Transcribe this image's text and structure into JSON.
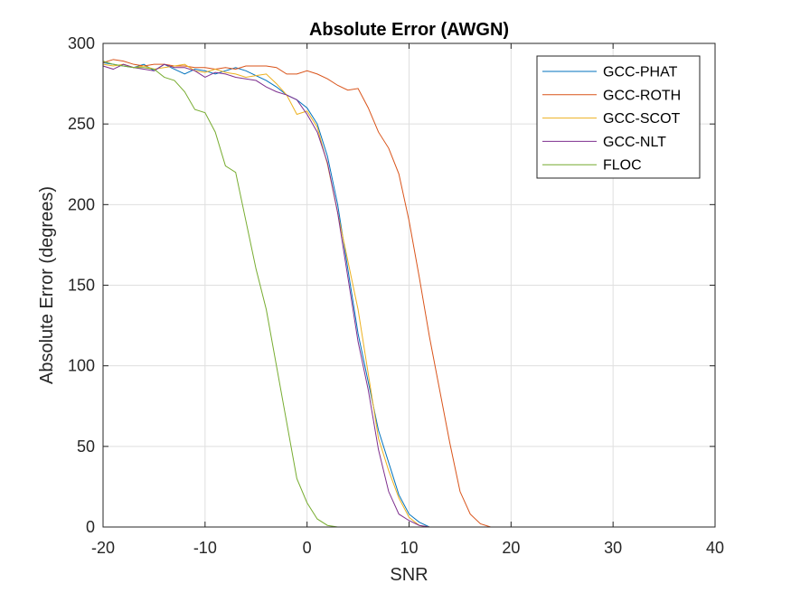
{
  "chart_data": {
    "type": "line",
    "title": "Absolute Error (AWGN)",
    "xlabel": "SNR",
    "ylabel": "Absolute Error (degrees)",
    "xlim": [
      -20,
      40
    ],
    "ylim": [
      0,
      300
    ],
    "xticks": [
      -20,
      -10,
      0,
      10,
      20,
      30,
      40
    ],
    "yticks": [
      0,
      50,
      100,
      150,
      200,
      250,
      300
    ],
    "grid": true,
    "legend_position": "top-right",
    "series": [
      {
        "name": "GCC-PHAT",
        "color": "#0072BD",
        "x": [
          -20,
          -19,
          -18,
          -17,
          -16,
          -15,
          -14,
          -13,
          -12,
          -11,
          -10,
          -9,
          -8,
          -7,
          -6,
          -5,
          -4,
          -3,
          -2,
          -1,
          0,
          1,
          2,
          3,
          4,
          5,
          6,
          7,
          8,
          9,
          10,
          11,
          12,
          13,
          14,
          15,
          16,
          17,
          18,
          19,
          20,
          25,
          30,
          35,
          40
        ],
        "y": [
          288,
          287,
          286,
          285,
          287,
          283,
          287,
          284,
          281,
          284,
          283,
          281,
          283,
          285,
          283,
          280,
          277,
          273,
          268,
          265,
          260,
          250,
          230,
          200,
          160,
          120,
          90,
          60,
          40,
          20,
          8,
          3,
          0,
          0,
          0,
          0,
          0,
          0,
          0,
          0,
          0,
          0,
          0,
          0,
          0
        ]
      },
      {
        "name": "GCC-ROTH",
        "color": "#D95319",
        "x": [
          -20,
          -19,
          -18,
          -17,
          -16,
          -15,
          -14,
          -13,
          -12,
          -11,
          -10,
          -9,
          -8,
          -7,
          -6,
          -5,
          -4,
          -3,
          -2,
          -1,
          0,
          1,
          2,
          3,
          4,
          5,
          6,
          7,
          8,
          9,
          10,
          11,
          12,
          13,
          14,
          15,
          16,
          17,
          18,
          19,
          20,
          25,
          30,
          35,
          40
        ],
        "y": [
          288,
          290,
          289,
          287,
          286,
          287,
          287,
          286,
          286,
          285,
          285,
          284,
          285,
          284,
          286,
          286,
          286,
          285,
          281,
          281,
          283,
          281,
          278,
          274,
          271,
          272,
          260,
          245,
          235,
          219,
          190,
          155,
          118,
          85,
          52,
          22,
          8,
          2,
          0,
          0,
          0,
          0,
          0,
          0,
          0
        ]
      },
      {
        "name": "GCC-SCOT",
        "color": "#EDB120",
        "x": [
          -20,
          -19,
          -18,
          -17,
          -16,
          -15,
          -14,
          -13,
          -12,
          -11,
          -10,
          -9,
          -8,
          -7,
          -6,
          -5,
          -4,
          -3,
          -2,
          -1,
          0,
          1,
          2,
          3,
          4,
          5,
          6,
          7,
          8,
          9,
          10,
          11,
          12,
          13,
          14,
          15,
          16,
          17,
          18,
          19,
          20,
          25,
          30,
          35,
          40
        ],
        "y": [
          287,
          286,
          287,
          285,
          286,
          284,
          285,
          286,
          287,
          283,
          282,
          284,
          282,
          281,
          279,
          280,
          281,
          275,
          268,
          256,
          258,
          248,
          225,
          195,
          165,
          135,
          95,
          55,
          35,
          18,
          6,
          1,
          0,
          0,
          0,
          0,
          0,
          0,
          0,
          0,
          0,
          0,
          0,
          0,
          0
        ]
      },
      {
        "name": "GCC-NLT",
        "color": "#7E2F8E",
        "x": [
          -20,
          -19,
          -18,
          -17,
          -16,
          -15,
          -14,
          -13,
          -12,
          -11,
          -10,
          -9,
          -8,
          -7,
          -6,
          -5,
          -4,
          -3,
          -2,
          -1,
          0,
          1,
          2,
          3,
          4,
          5,
          6,
          7,
          8,
          9,
          10,
          11,
          12,
          13,
          14,
          15,
          16,
          17,
          18,
          19,
          20,
          25,
          30,
          35,
          40
        ],
        "y": [
          286,
          284,
          287,
          285,
          284,
          283,
          287,
          285,
          285,
          283,
          279,
          282,
          281,
          279,
          278,
          277,
          273,
          270,
          268,
          265,
          256,
          245,
          226,
          195,
          155,
          115,
          85,
          48,
          22,
          8,
          4,
          1,
          0,
          0,
          0,
          0,
          0,
          0,
          0,
          0,
          0,
          0,
          0,
          0,
          0
        ]
      },
      {
        "name": "FLOC",
        "color": "#77AC30",
        "x": [
          -20,
          -19,
          -18,
          -17,
          -16,
          -15,
          -14,
          -13,
          -12,
          -11,
          -10,
          -9,
          -8,
          -7,
          -6,
          -5,
          -4,
          -3,
          -2,
          -1,
          0,
          1,
          2,
          3,
          4,
          5,
          6,
          7,
          8,
          9,
          10,
          11,
          12,
          13,
          14,
          15,
          16,
          17,
          18,
          19,
          20,
          25,
          30,
          35,
          40
        ],
        "y": [
          289,
          287,
          286,
          285,
          285,
          284,
          279,
          277,
          270,
          259,
          257,
          245,
          224,
          220,
          190,
          160,
          135,
          100,
          65,
          30,
          15,
          5,
          1,
          0,
          0,
          0,
          0,
          0,
          0,
          0,
          0,
          0,
          0,
          0,
          0,
          0,
          0,
          0,
          0,
          0,
          0,
          0,
          0,
          0,
          0
        ]
      }
    ]
  }
}
